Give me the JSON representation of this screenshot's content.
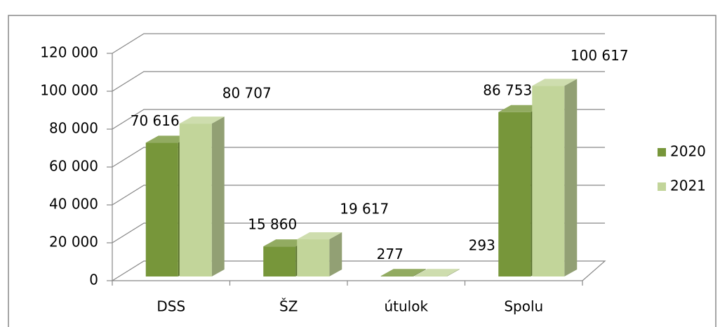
{
  "chart_data": {
    "type": "bar3d",
    "categories": [
      "DSS",
      "ŠZ",
      "útulok",
      "Spolu"
    ],
    "series": [
      {
        "name": "2020",
        "color": "#77963a",
        "values": [
          70616,
          15860,
          277,
          86753
        ],
        "value_labels": [
          "70 616",
          "15 860",
          "277",
          "86 753"
        ]
      },
      {
        "name": "2021",
        "color": "#c2d59a",
        "values": [
          80707,
          19617,
          293,
          100617
        ],
        "value_labels": [
          "80 707",
          "19 617",
          "293",
          "100 617"
        ]
      }
    ],
    "ylim": [
      0,
      120000
    ],
    "yticks": [
      0,
      {
        "value": 20000,
        "label": "20 000"
      },
      {
        "value": 40000,
        "label": "40 000"
      },
      {
        "value": 60000,
        "label": "60 000"
      },
      {
        "value": 80000,
        "label": "80 000"
      },
      {
        "value": 100000,
        "label": "100 000"
      },
      {
        "value": 120000,
        "label": "120 000"
      }
    ],
    "grid": true,
    "legend": "right"
  }
}
